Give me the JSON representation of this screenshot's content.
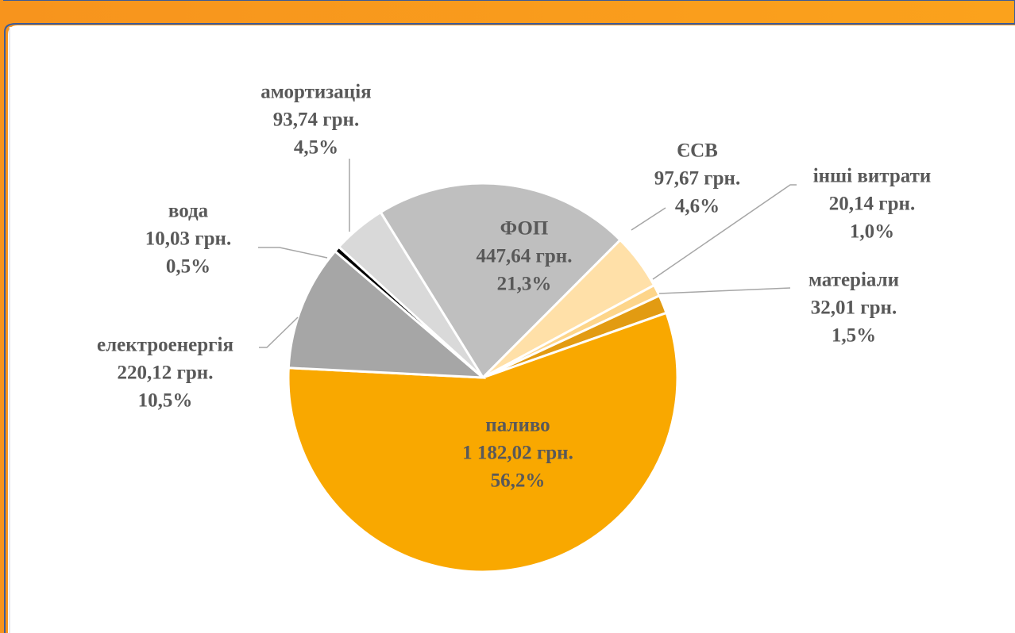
{
  "chart_data": {
    "type": "pie",
    "categories": [
      "ФОП",
      "ЄСВ",
      "інші витрати",
      "матеріали",
      "паливо",
      "електроенергія",
      "вода",
      "амортизація"
    ],
    "values": [
      447.64,
      97.67,
      20.14,
      32.01,
      1182.02,
      220.12,
      10.03,
      93.74
    ],
    "value_labels": [
      "447,64 грн.",
      "97,67 грн.",
      "20,14 грн.",
      "32,01 грн.",
      "1 182,02 грн.",
      "220,12 грн.",
      "10,03 грн.",
      "93,74 грн."
    ],
    "percents": [
      21.3,
      4.6,
      1.0,
      1.5,
      56.2,
      10.5,
      0.5,
      4.5
    ],
    "percent_labels": [
      "21,3%",
      "4,6%",
      "1,0%",
      "1,5%",
      "56,2%",
      "10,5%",
      "0,5%",
      "4,5%"
    ],
    "colors": [
      "#bfbfbf",
      "#ffe0a8",
      "#fdd58a",
      "#e29b12",
      "#f9a800",
      "#a6a6a6",
      "#000000",
      "#d9d9d9"
    ]
  }
}
